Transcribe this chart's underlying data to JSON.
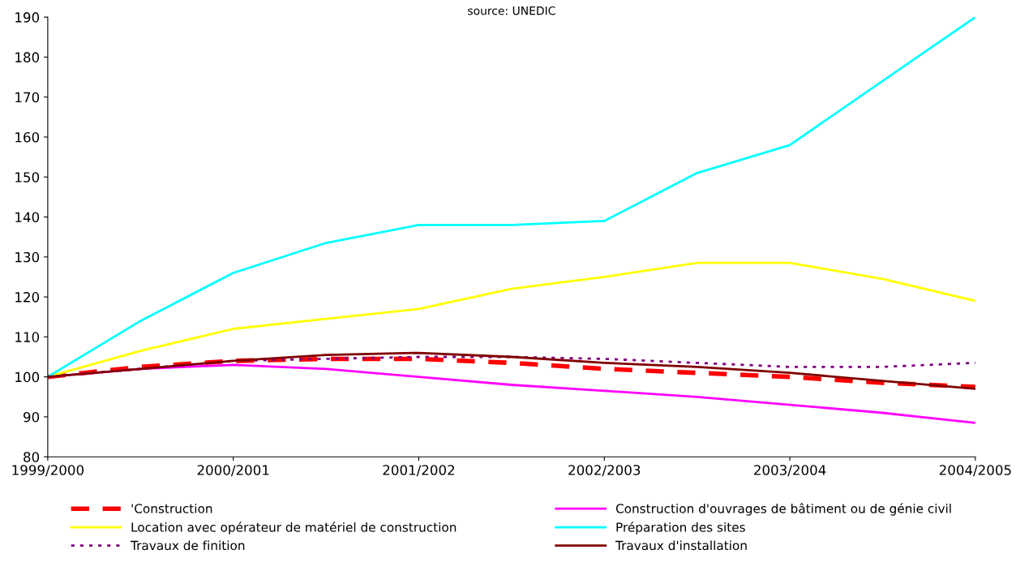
{
  "chart_data": {
    "type": "line",
    "title": "source: UNEDIC",
    "categories": [
      "1999/2000",
      null,
      "2000/2001",
      null,
      "2001/2002",
      null,
      "2002/2003",
      null,
      "2003/2004",
      null,
      "2004/2005"
    ],
    "series": [
      {
        "name": "'Construction",
        "color": "#ff0000",
        "line_style": "dashed",
        "values": [
          100,
          102.5,
          104,
          104.5,
          104.5,
          103.5,
          102,
          101,
          100,
          98.5,
          97.5
        ]
      },
      {
        "name": "Construction d'ouvrages de bâtiment ou de génie civil",
        "color": "#ff00ff",
        "line_style": "solid",
        "values": [
          100,
          102,
          103,
          102,
          100,
          98,
          96.5,
          95,
          93,
          91,
          88.5
        ]
      },
      {
        "name": "Location avec opérateur de matériel de construction",
        "color": "#ffff00",
        "line_style": "solid",
        "values": [
          100,
          106.5,
          112,
          114.5,
          117,
          122,
          125,
          128.5,
          128.5,
          124.5,
          119
        ]
      },
      {
        "name": "Préparation des sites",
        "color": "#00ffff",
        "line_style": "solid",
        "values": [
          100,
          114,
          126,
          133.5,
          138,
          138,
          139,
          151,
          158,
          174,
          190
        ]
      },
      {
        "name": "Travaux de finition",
        "color": "#800080",
        "line_style": "dotted",
        "values": [
          100,
          102,
          104,
          104.5,
          105,
          105,
          104.5,
          103.5,
          102.5,
          102.5,
          103.5
        ]
      },
      {
        "name": "Travaux d'installation",
        "color": "#800000",
        "line_style": "solid",
        "values": [
          100,
          102,
          104,
          105.5,
          106,
          105,
          103.5,
          102.5,
          101,
          99,
          97
        ]
      }
    ],
    "ylim": [
      80,
      190
    ],
    "yticks": [
      80,
      90,
      100,
      110,
      120,
      130,
      140,
      150,
      160,
      170,
      180,
      190
    ],
    "grid": false,
    "legend": "bottom",
    "marker": "none"
  }
}
